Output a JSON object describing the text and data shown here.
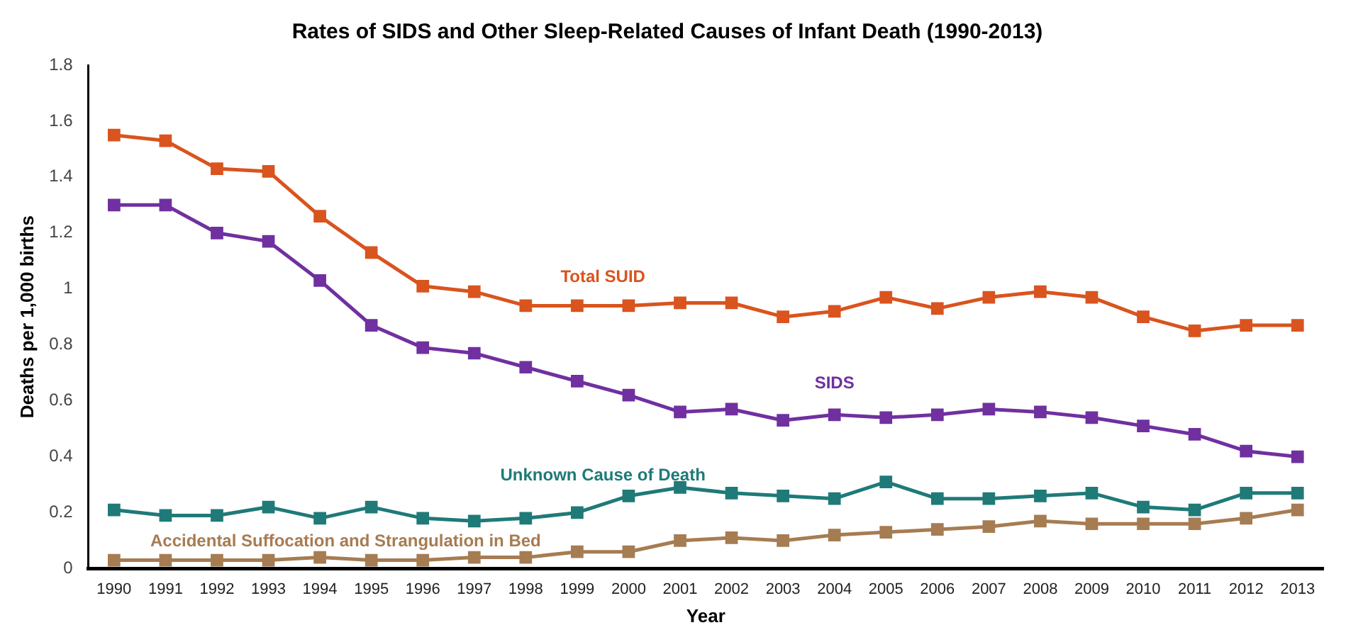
{
  "chart_data": {
    "type": "line",
    "title": "Rates of SIDS and Other Sleep-Related Causes of Infant Death (1990-2013)",
    "xlabel": "Year",
    "ylabel": "Deaths per 1,000 births",
    "categories": [
      "1990",
      "1991",
      "1992",
      "1993",
      "1994",
      "1995",
      "1996",
      "1997",
      "1998",
      "1999",
      "2000",
      "2001",
      "2002",
      "2003",
      "2004",
      "2005",
      "2006",
      "2007",
      "2008",
      "2009",
      "2010",
      "2011",
      "2012",
      "2013"
    ],
    "series": [
      {
        "name": "Total SUID",
        "color": "#d9541e",
        "values": [
          1.55,
          1.53,
          1.43,
          1.42,
          1.26,
          1.13,
          1.01,
          0.99,
          0.94,
          0.94,
          0.94,
          0.95,
          0.95,
          0.9,
          0.92,
          0.97,
          0.93,
          0.97,
          0.99,
          0.97,
          0.9,
          0.85,
          0.87,
          0.87
        ]
      },
      {
        "name": "SIDS",
        "color": "#7030a0",
        "values": [
          1.3,
          1.3,
          1.2,
          1.17,
          1.03,
          0.87,
          0.79,
          0.77,
          0.72,
          0.67,
          0.62,
          0.56,
          0.57,
          0.53,
          0.55,
          0.54,
          0.55,
          0.57,
          0.56,
          0.54,
          0.51,
          0.48,
          0.42,
          0.4
        ]
      },
      {
        "name": "Unknown Cause of Death",
        "color": "#1f7a78",
        "values": [
          0.21,
          0.19,
          0.19,
          0.22,
          0.18,
          0.22,
          0.18,
          0.17,
          0.18,
          0.2,
          0.26,
          0.29,
          0.27,
          0.26,
          0.25,
          0.31,
          0.25,
          0.25,
          0.26,
          0.27,
          0.22,
          0.21,
          0.27,
          0.27
        ]
      },
      {
        "name": "Accidental Suffocation and Strangulation in Bed",
        "color": "#a67c52",
        "values": [
          0.03,
          0.03,
          0.03,
          0.03,
          0.04,
          0.03,
          0.03,
          0.04,
          0.04,
          0.06,
          0.06,
          0.1,
          0.11,
          0.1,
          0.12,
          0.13,
          0.14,
          0.15,
          0.17,
          0.16,
          0.16,
          0.16,
          0.18,
          0.21
        ]
      }
    ],
    "ylim": [
      0,
      1.8
    ],
    "yticks": [
      0,
      0.2,
      0.4,
      0.6,
      0.8,
      1,
      1.2,
      1.4,
      1.6,
      1.8
    ],
    "grid": false,
    "legend": false,
    "marker": "square",
    "line_style": "solid"
  }
}
